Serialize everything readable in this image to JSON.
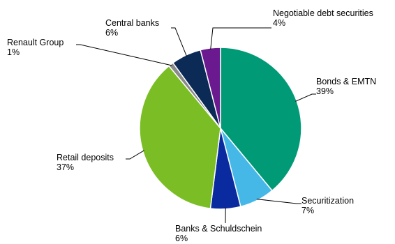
{
  "chart_data": {
    "type": "pie",
    "title": "",
    "start_angle_deg": 0,
    "direction": "clockwise",
    "slices": [
      {
        "label": "Bonds & EMTN",
        "value": 39,
        "value_label": "39%",
        "color": "#009a77"
      },
      {
        "label": "Securitization",
        "value": 7,
        "value_label": "7%",
        "color": "#45b8e8"
      },
      {
        "label": "Banks & Schuldschein",
        "value": 6,
        "value_label": "6%",
        "color": "#0a2ba0"
      },
      {
        "label": "Retail deposits",
        "value": 37,
        "value_label": "37%",
        "color": "#7bbd24"
      },
      {
        "label": "Renault Group",
        "value": 1,
        "value_label": "1%",
        "color": "#8a8a8a"
      },
      {
        "label": "Central banks",
        "value": 6,
        "value_label": "6%",
        "color": "#0b2a55"
      },
      {
        "label": "Negotiable debt securities",
        "value": 4,
        "value_label": "4%",
        "color": "#6a1a8e"
      }
    ]
  }
}
